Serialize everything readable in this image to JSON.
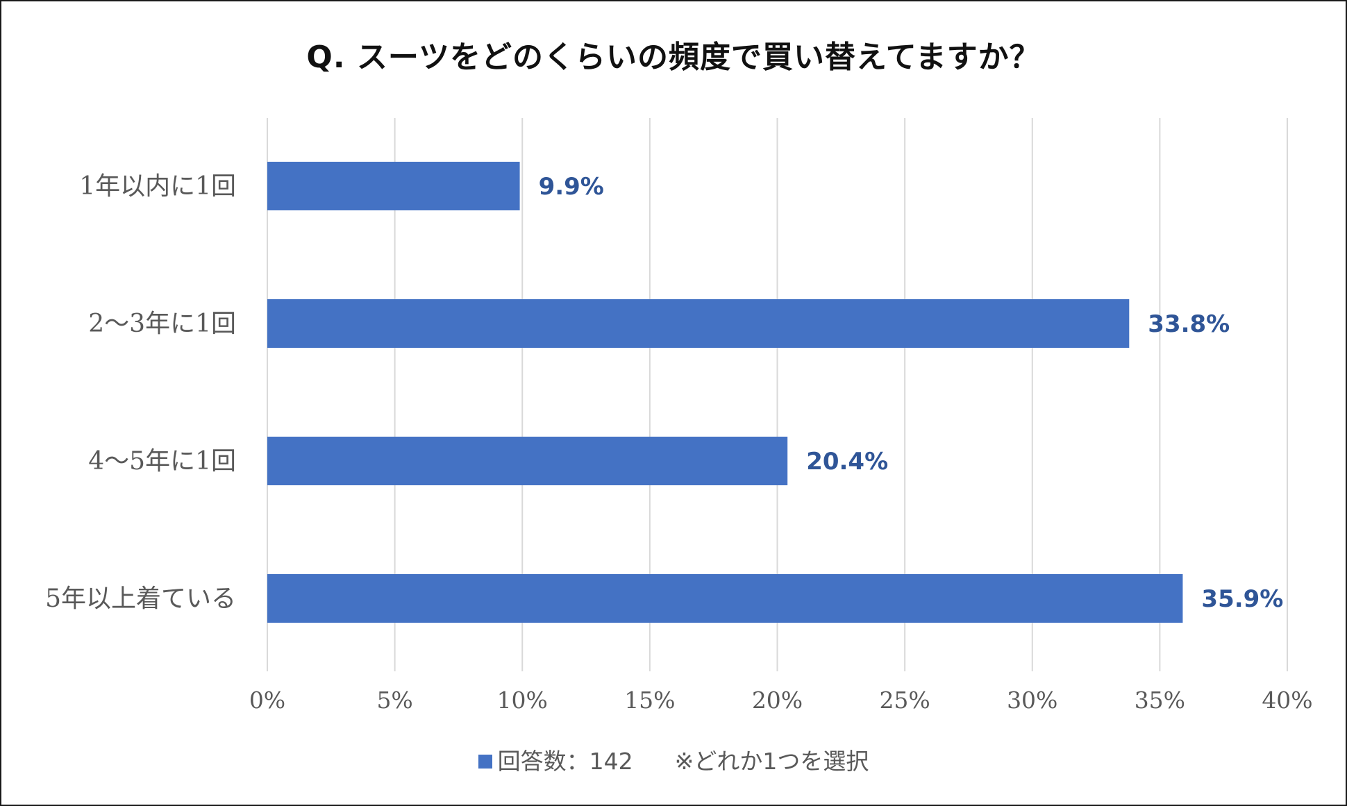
{
  "chart_data": {
    "type": "bar",
    "orientation": "horizontal",
    "title": "Q. スーツをどのくらいの頻度で買い替えてますか？",
    "categories": [
      "1年以内に1回",
      "2〜3年に1回",
      "4〜5年に1回",
      "5年以上着ている"
    ],
    "values": [
      9.9,
      33.8,
      20.4,
      35.9
    ],
    "data_labels": [
      "9.9%",
      "33.8%",
      "20.4%",
      "35.9%"
    ],
    "xlim": [
      0,
      40
    ],
    "x_ticks": [
      0,
      5,
      10,
      15,
      20,
      25,
      30,
      35,
      40
    ],
    "x_tick_labels": [
      "0%",
      "5%",
      "10%",
      "15%",
      "20%",
      "25%",
      "30%",
      "35%",
      "40%"
    ],
    "grid": true,
    "legend_position": "bottom",
    "series": [
      {
        "name": "回答数：142",
        "values": [
          9.9,
          33.8,
          20.4,
          35.9
        ]
      }
    ],
    "bar_color": "#4472C4",
    "label_color": "#2F5597",
    "grid_color": "#D9D9D9"
  },
  "legend": {
    "series_label": "回答数：142",
    "note": "※どれか1つを選択"
  }
}
